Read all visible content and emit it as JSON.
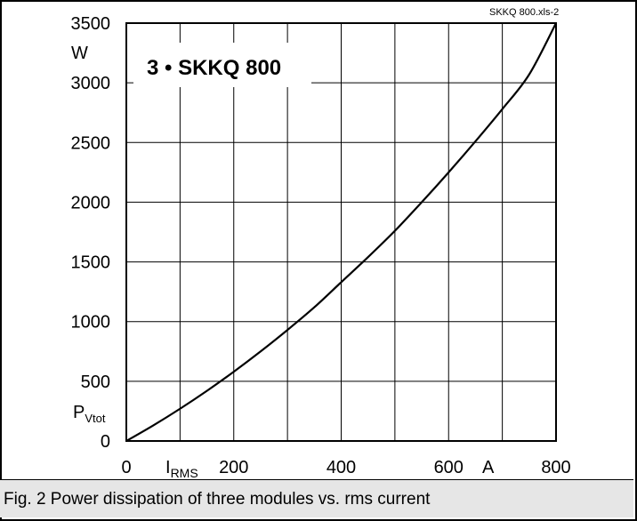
{
  "source_tag": "SKKQ 800.xls-2",
  "inset_title": "3 • SKKQ 800",
  "y_unit": "W",
  "y_symbol": {
    "main": "P",
    "sub": "Vtot"
  },
  "x_symbol": {
    "main": "I",
    "sub": "RMS"
  },
  "x_unit": "A",
  "caption": "Fig. 2 Power dissipation of three modules vs. rms current",
  "chart_data": {
    "type": "line",
    "title": "3 • SKKQ 800",
    "xlim": [
      0,
      800
    ],
    "ylim": [
      0,
      3500
    ],
    "x_ticks": [
      0,
      200,
      400,
      600,
      800
    ],
    "y_ticks": [
      0,
      500,
      1000,
      1500,
      2000,
      2500,
      3000,
      3500
    ],
    "grid": true,
    "series": [
      {
        "x": [
          0,
          50,
          100,
          150,
          200,
          250,
          300,
          350,
          400,
          450,
          500,
          550,
          600,
          650,
          700,
          750,
          800
        ],
        "y": [
          0,
          130,
          270,
          420,
          580,
          750,
          930,
          1120,
          1330,
          1540,
          1760,
          2000,
          2250,
          2510,
          2780,
          3070,
          3500
        ]
      }
    ]
  }
}
